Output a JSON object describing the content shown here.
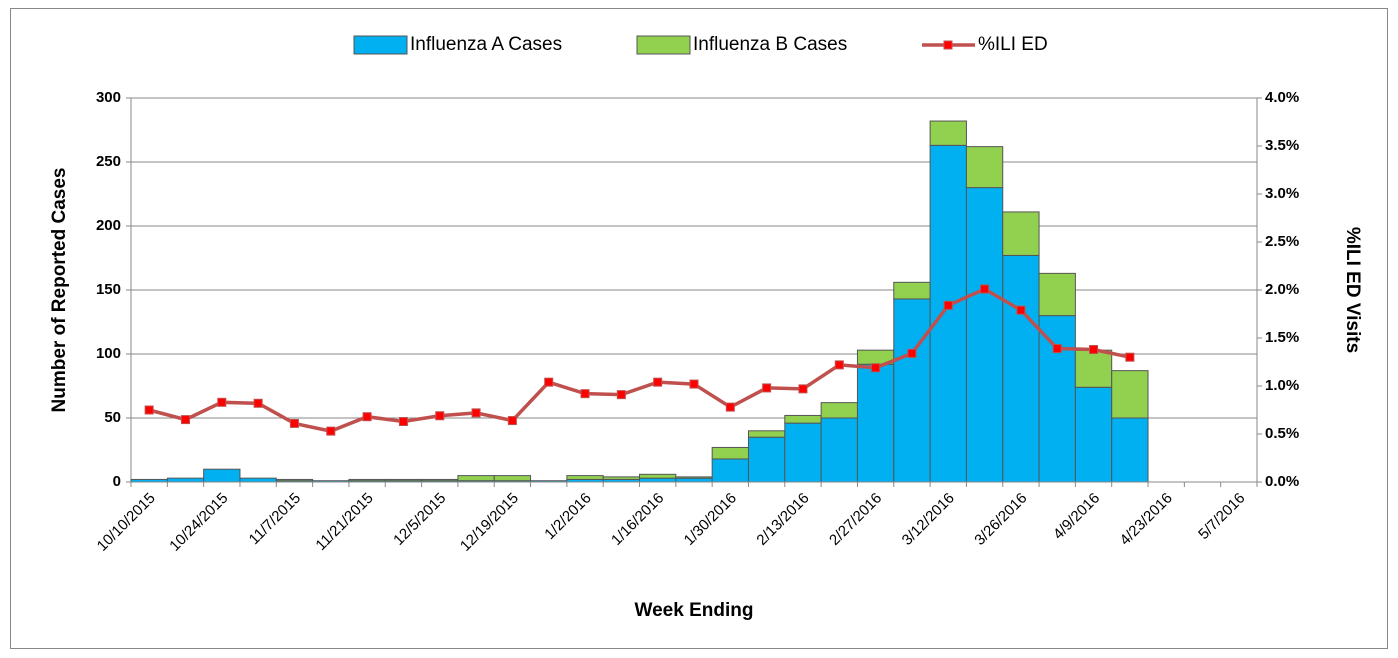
{
  "chart_data": {
    "type": "bar-line",
    "x_label": "Week Ending",
    "y_label": "Number of Reported Cases",
    "y2_label": "%ILI ED Visits",
    "categories": [
      "10/10/2015",
      null,
      "10/24/2015",
      null,
      "11/7/2015",
      null,
      "11/21/2015",
      null,
      "12/5/2015",
      null,
      "12/19/2015",
      null,
      "1/2/2016",
      null,
      "1/16/2016",
      null,
      "1/30/2016",
      null,
      "2/13/2016",
      null,
      "2/27/2016",
      null,
      "3/12/2016",
      null,
      "3/26/2016",
      null,
      "4/9/2016",
      null,
      "4/23/2016",
      null,
      "5/7/2016"
    ],
    "series": [
      {
        "name": "Influenza A Cases",
        "type": "bar",
        "color": "#00b0f0",
        "values": [
          2,
          3,
          10,
          3,
          1,
          1,
          1,
          1,
          1,
          1,
          1,
          1,
          2,
          2,
          3,
          3,
          18,
          35,
          46,
          50,
          92,
          143,
          263,
          230,
          177,
          130,
          74,
          50,
          null,
          null,
          null
        ]
      },
      {
        "name": "Influenza B Cases",
        "type": "bar",
        "color": "#92d050",
        "values": [
          0,
          0,
          0,
          0,
          1,
          0,
          1,
          1,
          1,
          4,
          4,
          0,
          3,
          2,
          3,
          1,
          9,
          5,
          6,
          12,
          11,
          13,
          19,
          32,
          34,
          33,
          29,
          37,
          null,
          null,
          null
        ]
      },
      {
        "name": "%ILI ED",
        "type": "line",
        "axis": "y2",
        "color": "#c0504d",
        "marker_color": "#ff0000",
        "values": [
          0.75,
          0.65,
          0.83,
          0.82,
          0.61,
          0.53,
          0.68,
          0.63,
          0.69,
          0.72,
          0.64,
          1.04,
          0.92,
          0.91,
          1.04,
          1.02,
          0.78,
          0.98,
          0.97,
          1.22,
          1.19,
          1.34,
          1.84,
          2.01,
          1.79,
          1.39,
          1.38,
          1.3,
          null,
          null,
          null
        ]
      }
    ],
    "ylim": [
      0,
      300
    ],
    "yticks": [
      0,
      50,
      100,
      150,
      200,
      250,
      300
    ],
    "y2lim": [
      0,
      4
    ],
    "y2ticks": [
      {
        "value": 0,
        "label": "0.0%"
      },
      {
        "value": 0.5,
        "label": "0.5%"
      },
      {
        "value": 1,
        "label": "1.0%"
      },
      {
        "value": 1.5,
        "label": "1.5%"
      },
      {
        "value": 2,
        "label": "2.0%"
      },
      {
        "value": 2.5,
        "label": "2.5%"
      },
      {
        "value": 3,
        "label": "3.0%"
      },
      {
        "value": 3.5,
        "label": "3.5%"
      },
      {
        "value": 4,
        "label": "4.0%"
      }
    ],
    "grid": true,
    "legend": "top"
  }
}
